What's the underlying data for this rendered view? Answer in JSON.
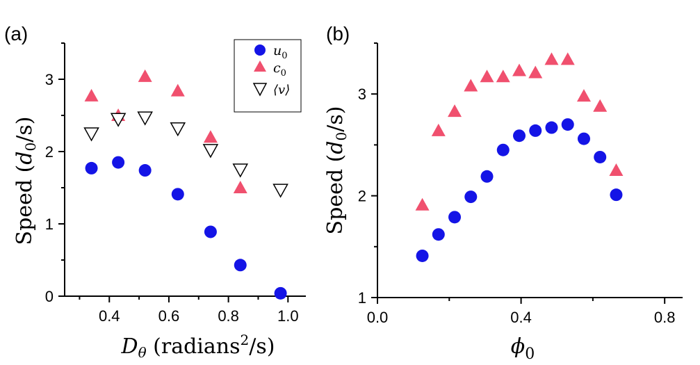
{
  "chart_data": [
    {
      "panel": "(a)",
      "type": "scatter",
      "xlabel_main": "D",
      "xlabel_sub": "θ",
      "xlabel_unit_pre": " (radians",
      "xlabel_unit_sup": "2",
      "xlabel_unit_post": "/s)",
      "ylabel_pre": "Speed (",
      "ylabel_var": "d",
      "ylabel_sub": "0",
      "ylabel_post": "/s)",
      "xlim": [
        0.25,
        1.06
      ],
      "ylim": [
        0,
        3.5
      ],
      "xticks": [
        0.4,
        0.6,
        0.8,
        1.0
      ],
      "xtick_labels": [
        "0.4",
        "0.6",
        "0.8",
        "1.0"
      ],
      "xminor": [
        0.3,
        0.5,
        0.7,
        0.9
      ],
      "yticks": [
        0,
        1,
        2,
        3
      ],
      "ytick_labels": [
        "0",
        "1",
        "2",
        "3"
      ],
      "yminor": [
        0.5,
        1.5,
        2.5,
        3.5
      ],
      "legend_position": "top-right",
      "series": [
        {
          "name": "u0",
          "legend_var": "u",
          "legend_sub": "0",
          "marker": "circle",
          "color": "#1414e6",
          "x": [
            0.34,
            0.43,
            0.52,
            0.63,
            0.74,
            0.84,
            0.975
          ],
          "y": [
            1.77,
            1.85,
            1.74,
            1.41,
            0.89,
            0.43,
            0.04
          ]
        },
        {
          "name": "c0",
          "legend_var": "c",
          "legend_sub": "0",
          "marker": "triangle-up",
          "color": "#f0506e",
          "x": [
            0.34,
            0.43,
            0.52,
            0.63,
            0.74,
            0.84
          ],
          "y": [
            2.77,
            2.5,
            3.04,
            2.84,
            2.2,
            1.5
          ]
        },
        {
          "name": "⟨v⟩",
          "legend_var": "⟨v⟩",
          "legend_sub": "",
          "marker": "triangle-down-open",
          "color": "#000000",
          "x": [
            0.34,
            0.43,
            0.52,
            0.63,
            0.74,
            0.84,
            0.975
          ],
          "y": [
            2.25,
            2.45,
            2.47,
            2.32,
            2.02,
            1.75,
            1.47
          ]
        }
      ]
    },
    {
      "panel": "(b)",
      "type": "scatter",
      "xlabel_main": "ϕ",
      "xlabel_sub": "0",
      "ylabel_pre": "Speed (",
      "ylabel_var": "d",
      "ylabel_sub": "0",
      "ylabel_post": "/s)",
      "xlim": [
        0,
        0.85
      ],
      "ylim": [
        1,
        3.5
      ],
      "xticks": [
        0.0,
        0.4,
        0.8
      ],
      "xtick_labels": [
        "0.0",
        "0.4",
        "0.8"
      ],
      "xminor": [
        0.2,
        0.6
      ],
      "yticks": [
        1,
        2,
        3
      ],
      "ytick_labels": [
        "1",
        "2",
        "3"
      ],
      "yminor": [
        1.5,
        2.5,
        3.5
      ],
      "series": [
        {
          "name": "c0",
          "marker": "triangle-up",
          "color": "#f0506e",
          "x": [
            0.125,
            0.17,
            0.215,
            0.26,
            0.305,
            0.35,
            0.395,
            0.44,
            0.485,
            0.53,
            0.575,
            0.62,
            0.665
          ],
          "y": [
            1.91,
            2.64,
            2.83,
            3.08,
            3.17,
            3.17,
            3.23,
            3.21,
            3.34,
            3.34,
            2.98,
            2.88,
            2.25
          ]
        },
        {
          "name": "u0",
          "marker": "circle",
          "color": "#1414e6",
          "x": [
            0.125,
            0.17,
            0.215,
            0.26,
            0.305,
            0.35,
            0.395,
            0.44,
            0.485,
            0.53,
            0.575,
            0.62,
            0.665
          ],
          "y": [
            1.41,
            1.62,
            1.79,
            1.99,
            2.19,
            2.45,
            2.59,
            2.64,
            2.67,
            2.7,
            2.56,
            2.38,
            2.01
          ]
        }
      ]
    }
  ]
}
